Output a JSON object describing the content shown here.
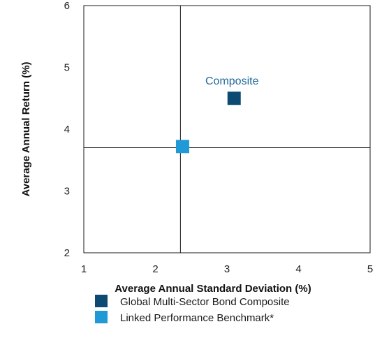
{
  "chart_data": {
    "type": "scatter",
    "xlabel": "Average Annual Standard Deviation (%)",
    "ylabel": "Average Annual Return (%)",
    "xlim": [
      1,
      5
    ],
    "ylim": [
      2,
      6
    ],
    "xticks": [
      "1",
      "2",
      "3",
      "4",
      "5"
    ],
    "yticks": [
      "2",
      "3",
      "4",
      "5",
      "6"
    ],
    "grid": false,
    "reference_lines": {
      "x": 2.35,
      "y": 3.7
    },
    "series": [
      {
        "name": "Global Multi-Sector Bond Composite",
        "x": 3.1,
        "y": 4.5,
        "color": "#0d4a73",
        "marker": "square",
        "label": "Composite"
      },
      {
        "name": "Linked Performance Benchmark*",
        "x": 2.38,
        "y": 3.72,
        "color": "#1f9ad6",
        "marker": "square",
        "label": ""
      }
    ],
    "legend": {
      "placement": "bottom"
    }
  }
}
